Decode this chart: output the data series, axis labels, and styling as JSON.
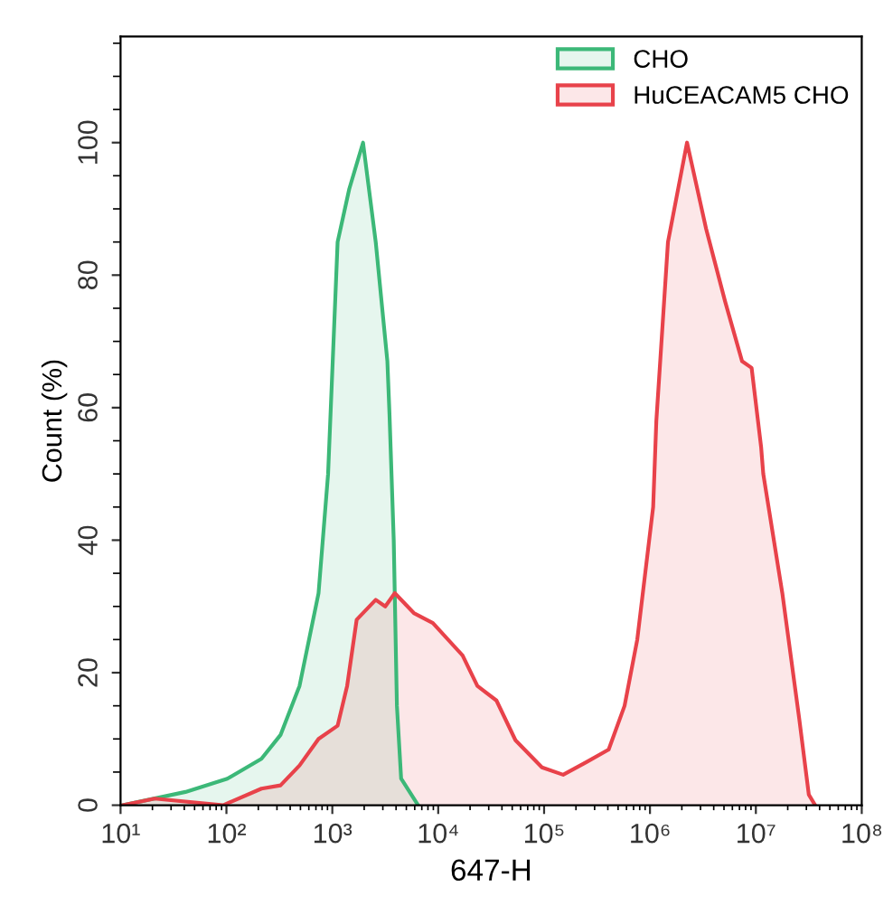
{
  "chart_data": {
    "type": "area",
    "xlabel": "647-H",
    "ylabel": "Count (%)",
    "log": "x",
    "xlim": [
      10,
      100000000
    ],
    "xticks": [
      {
        "value": 10,
        "label": "10¹"
      },
      {
        "value": 100,
        "label": "10²"
      },
      {
        "value": 1000,
        "label": "10³"
      },
      {
        "value": 10000,
        "label": "10⁴"
      },
      {
        "value": 100000,
        "label": "10⁵"
      },
      {
        "value": 1000000,
        "label": "10⁶"
      },
      {
        "value": 10000000,
        "label": "10⁷"
      },
      {
        "value": 100000000,
        "label": "10⁸"
      }
    ],
    "ylim": [
      0,
      116
    ],
    "yticks": [
      0,
      20,
      40,
      60,
      80,
      100
    ],
    "grid": false,
    "legend": "top right",
    "marker": "none",
    "line_style": "solid",
    "series": [
      {
        "name": "CHO",
        "color": "#3cb878",
        "x": [
          10.5,
          41,
          102,
          214,
          324,
          490,
          741,
          912,
          1122,
          1445,
          1950,
          2570,
          3311,
          3467,
          3802,
          4074,
          4467,
          6457
        ],
        "values": [
          0,
          2,
          4,
          7,
          10.6,
          18,
          32,
          50,
          85,
          93,
          100,
          85,
          67,
          59,
          40,
          15,
          4,
          0
        ]
      },
      {
        "name": "HuCEACAM5 CHO",
        "color": "#e8424a",
        "x": [
          10.5,
          21,
          93,
          214,
          324,
          490,
          741,
          1122,
          1380,
          1698,
          2570,
          3162,
          3890,
          5888,
          8913,
          16982,
          23442,
          35481,
          53703,
          95499,
          151356,
          251189,
          407380,
          575440,
          758578,
          1071519,
          1148154,
          1479108,
          2238721,
          3388442,
          5128614,
          7413102,
          9120108,
          11220185,
          11748976,
          17782794,
          25703958,
          31622777,
          36307805
        ],
        "values": [
          0,
          1,
          0,
          2.5,
          3,
          6,
          10,
          12,
          18,
          28,
          31,
          30,
          32,
          29,
          27.5,
          22.6,
          18,
          15.8,
          9.8,
          5.7,
          4.6,
          6.5,
          8.4,
          15,
          25,
          45,
          58,
          85,
          100,
          87,
          76,
          67,
          66,
          54,
          50,
          32,
          13,
          1.6,
          0
        ]
      }
    ]
  }
}
